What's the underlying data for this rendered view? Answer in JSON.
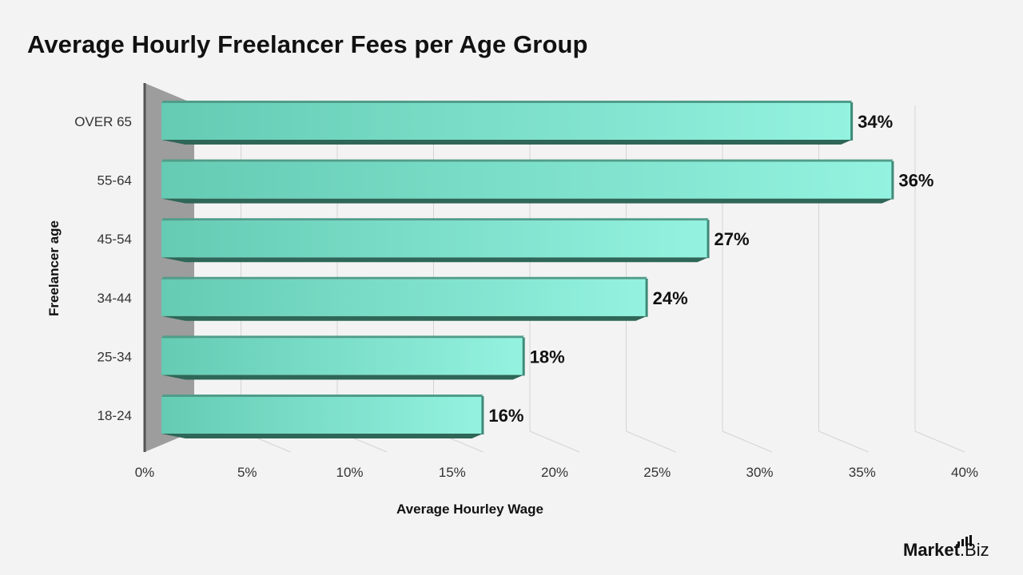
{
  "chart_data": {
    "type": "bar",
    "orientation": "horizontal",
    "title": "Average Hourly Freelancer Fees per Age Group",
    "xlabel": "Average Hourley Wage",
    "ylabel": "Freelancer age",
    "categories": [
      "OVER 65",
      "55-64",
      "45-54",
      "34-44",
      "25-34",
      "18-24"
    ],
    "values": [
      34,
      36,
      27,
      24,
      18,
      16
    ],
    "value_labels": [
      "34%",
      "36%",
      "27%",
      "24%",
      "18%",
      "16%"
    ],
    "xlim": [
      0,
      40
    ],
    "xticks": [
      0,
      5,
      10,
      15,
      20,
      25,
      30,
      35,
      40
    ],
    "xtick_labels": [
      "0%",
      "5%",
      "10%",
      "15%",
      "20%",
      "25%",
      "30%",
      "35%",
      "40%"
    ],
    "grid": true,
    "style": "3d",
    "colors": {
      "bar_light": "#93f3e0",
      "bar_base": "#6dd0b8",
      "bar_dark": "#2e6657",
      "wall": "#9d9d9d",
      "grid": "#d4d4d4"
    }
  },
  "logo": {
    "strong": "Market",
    "light": ".Biz"
  }
}
